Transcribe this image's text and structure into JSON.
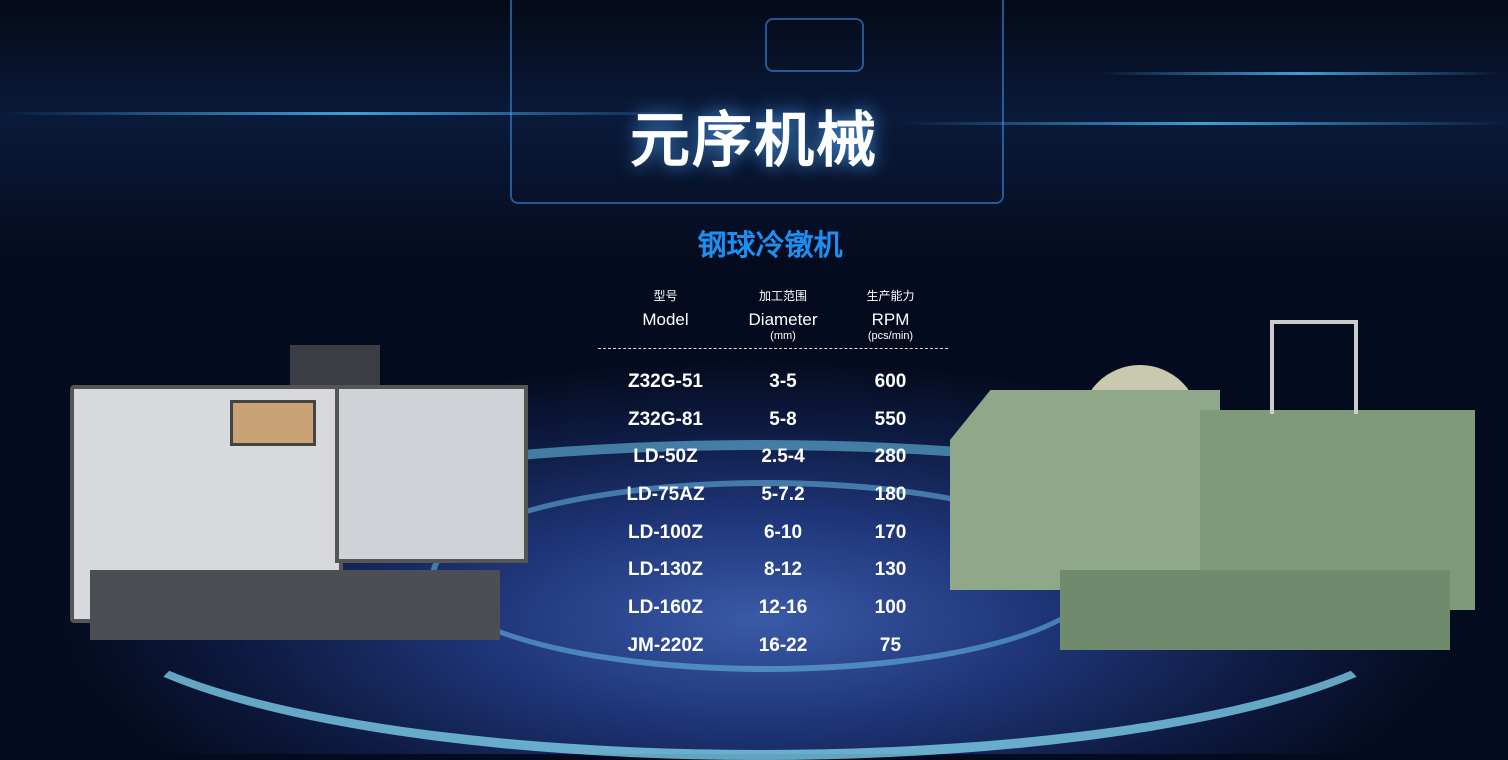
{
  "header": {
    "title": "元序机械"
  },
  "section": {
    "subtitle": "钢球冷镦机"
  },
  "table": {
    "headers": [
      {
        "cn": "型号",
        "en": "Model",
        "unit": ""
      },
      {
        "cn": "加工范围",
        "en": "Diameter",
        "unit": "(mm)"
      },
      {
        "cn": "生产能力",
        "en": "RPM",
        "unit": "(pcs/min)"
      }
    ],
    "rows": [
      [
        "Z32G-51",
        "3-5",
        "600"
      ],
      [
        "Z32G-81",
        "5-8",
        "550"
      ],
      [
        "LD-50Z",
        "2.5-4",
        "280"
      ],
      [
        "LD-75AZ",
        "5-7.2",
        "180"
      ],
      [
        "LD-100Z",
        "6-10",
        "170"
      ],
      [
        "LD-130Z",
        "8-12",
        "130"
      ],
      [
        "LD-160Z",
        "12-16",
        "100"
      ],
      [
        "JM-220Z",
        "16-22",
        "75"
      ]
    ]
  },
  "colors": {
    "title": "#ffffff",
    "subtitle": "#1c8ff0",
    "background": "#0d1a40"
  }
}
